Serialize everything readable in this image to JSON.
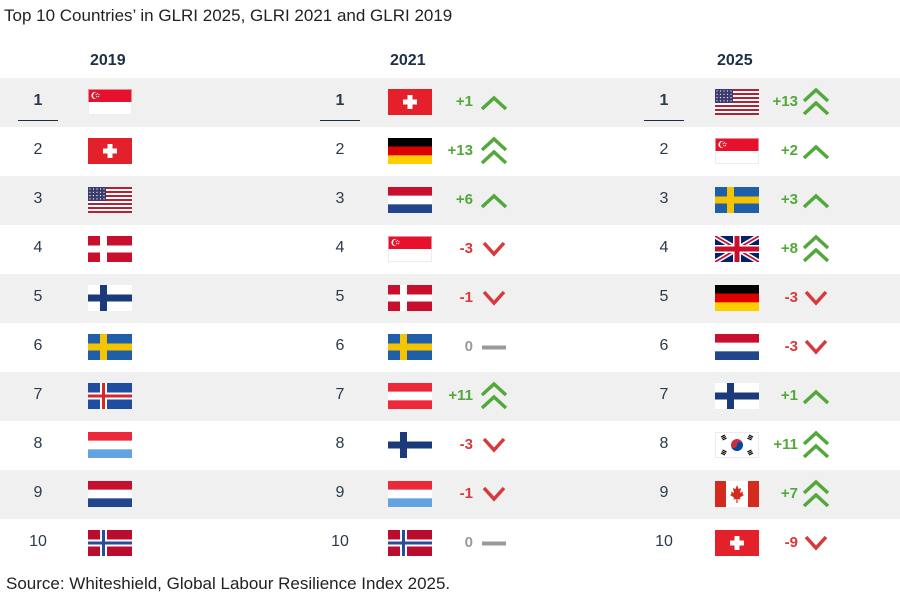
{
  "title": "Top 10 Countries’ in GLRI 2025, GLRI 2021 and GLRI 2019",
  "source": "Source: Whiteshield, Global Labour Resilience Index 2025.",
  "colors": {
    "up": "#52a83a",
    "down": "#d63a3a",
    "same": "#9a9a9a",
    "heading": "#1d2f45",
    "row_shade": "#f0f0f1"
  },
  "chart_data": {
    "type": "table",
    "columns": [
      "2019",
      "2021",
      "2025"
    ],
    "ranks": [
      "1",
      "2",
      "3",
      "4",
      "5",
      "6",
      "7",
      "8",
      "9",
      "10"
    ],
    "tables": [
      {
        "year": "2019",
        "rows": [
          {
            "rank": "1",
            "flag": "singapore"
          },
          {
            "rank": "2",
            "flag": "switzerland"
          },
          {
            "rank": "3",
            "flag": "united-states"
          },
          {
            "rank": "4",
            "flag": "denmark"
          },
          {
            "rank": "5",
            "flag": "finland"
          },
          {
            "rank": "6",
            "flag": "sweden"
          },
          {
            "rank": "7",
            "flag": "iceland"
          },
          {
            "rank": "8",
            "flag": "luxembourg"
          },
          {
            "rank": "9",
            "flag": "netherlands"
          },
          {
            "rank": "10",
            "flag": "norway"
          }
        ]
      },
      {
        "year": "2021",
        "rows": [
          {
            "rank": "1",
            "flag": "switzerland",
            "change": "+1",
            "dir": "up",
            "arrow": "single"
          },
          {
            "rank": "2",
            "flag": "germany",
            "change": "+13",
            "dir": "up",
            "arrow": "double"
          },
          {
            "rank": "3",
            "flag": "netherlands",
            "change": "+6",
            "dir": "up",
            "arrow": "single"
          },
          {
            "rank": "4",
            "flag": "singapore",
            "change": "-3",
            "dir": "down",
            "arrow": "single"
          },
          {
            "rank": "5",
            "flag": "denmark",
            "change": "-1",
            "dir": "down",
            "arrow": "single"
          },
          {
            "rank": "6",
            "flag": "sweden",
            "change": "0",
            "dir": "same",
            "arrow": "dash"
          },
          {
            "rank": "7",
            "flag": "austria",
            "change": "+11",
            "dir": "up",
            "arrow": "double"
          },
          {
            "rank": "8",
            "flag": "finland",
            "change": "-3",
            "dir": "down",
            "arrow": "single"
          },
          {
            "rank": "9",
            "flag": "luxembourg",
            "change": "-1",
            "dir": "down",
            "arrow": "single"
          },
          {
            "rank": "10",
            "flag": "norway",
            "change": "0",
            "dir": "same",
            "arrow": "dash"
          }
        ]
      },
      {
        "year": "2025",
        "rows": [
          {
            "rank": "1",
            "flag": "united-states",
            "change": "+13",
            "dir": "up",
            "arrow": "double"
          },
          {
            "rank": "2",
            "flag": "singapore",
            "change": "+2",
            "dir": "up",
            "arrow": "single"
          },
          {
            "rank": "3",
            "flag": "sweden",
            "change": "+3",
            "dir": "up",
            "arrow": "single"
          },
          {
            "rank": "4",
            "flag": "united-kingdom",
            "change": "+8",
            "dir": "up",
            "arrow": "double"
          },
          {
            "rank": "5",
            "flag": "germany",
            "change": "-3",
            "dir": "down",
            "arrow": "single"
          },
          {
            "rank": "6",
            "flag": "netherlands",
            "change": "-3",
            "dir": "down",
            "arrow": "single"
          },
          {
            "rank": "7",
            "flag": "finland",
            "change": "+1",
            "dir": "up",
            "arrow": "single"
          },
          {
            "rank": "8",
            "flag": "south-korea",
            "change": "+11",
            "dir": "up",
            "arrow": "double"
          },
          {
            "rank": "9",
            "flag": "canada",
            "change": "+7",
            "dir": "up",
            "arrow": "double"
          },
          {
            "rank": "10",
            "flag": "switzerland",
            "change": "-9",
            "dir": "down",
            "arrow": "single"
          }
        ]
      }
    ]
  }
}
